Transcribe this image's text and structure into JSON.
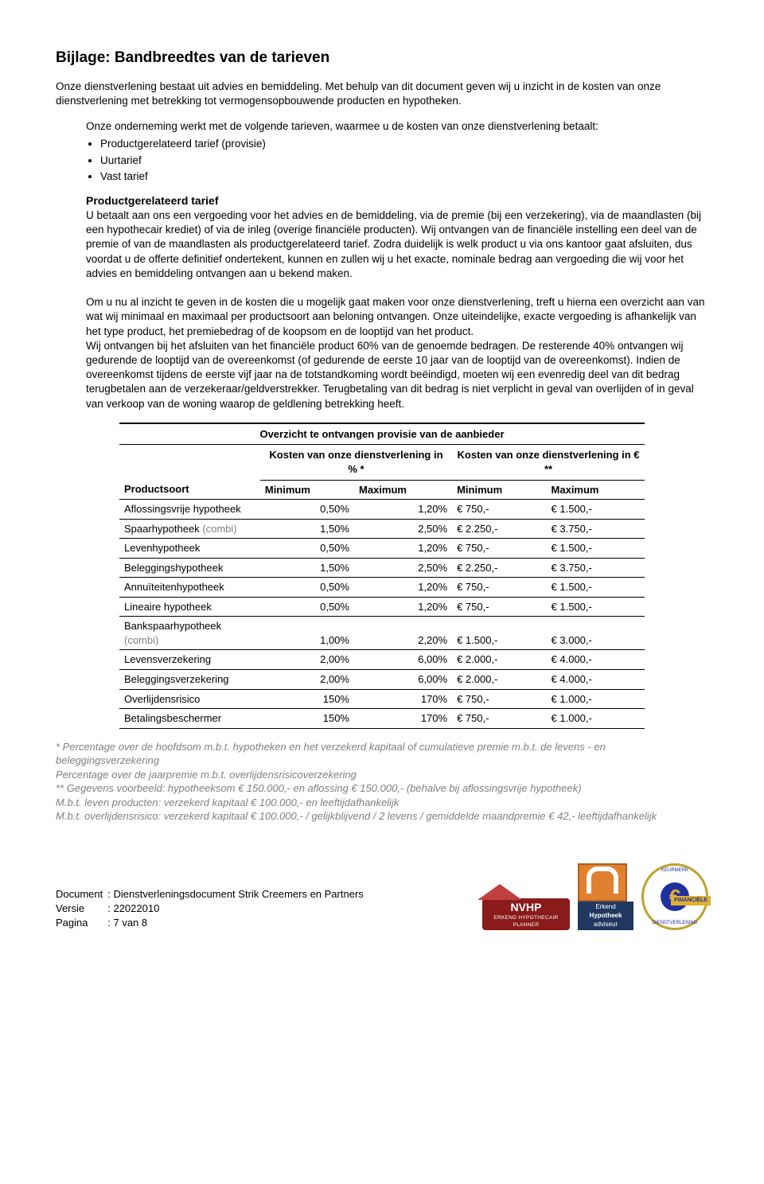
{
  "title": "Bijlage: Bandbreedtes van de tarieven",
  "intro1": "Onze dienstverlening bestaat uit advies en bemiddeling. Met behulp van dit document geven wij u inzicht in de kosten van onze dienstverlening met betrekking tot vermogensopbouwende producten en hypotheken.",
  "block1_intro": "Onze onderneming werkt met de volgende tarieven, waarmee u de kosten van onze dienstverlening betaalt:",
  "bullets": [
    "Productgerelateerd tarief (provisie)",
    "Uurtarief",
    "Vast tarief"
  ],
  "subhead": "Productgerelateerd tarief",
  "para_product": "U betaalt aan ons een vergoeding voor het advies en de bemiddeling, via de premie (bij een verzekering), via de maandlasten (bij een hypothecair krediet) of via de inleg (overige financiële producten). Wij ontvangen van de financiële instelling een deel van de premie of van de maandlasten als productgerelateerd tarief. Zodra duidelijk is welk product u via ons kantoor gaat afsluiten, dus voordat u de offerte definitief ondertekent, kunnen en zullen wij u het exacte, nominale bedrag aan vergoeding die wij voor het advies en bemiddeling ontvangen aan u bekend maken.",
  "para_overview": "Om u nu al inzicht te geven in de kosten die u mogelijk gaat maken voor onze dienstverlening, treft u hierna een overzicht aan van wat wij minimaal en maximaal per productsoort aan beloning ontvangen. Onze uiteindelijke, exacte vergoeding is afhankelijk van het type product, het premiebedrag of de koopsom en de looptijd van het product.\nWij ontvangen bij het afsluiten van het financiële product 60% van de genoemde bedragen. De resterende 40% ontvangen wij gedurende de looptijd van de overeenkomst (of gedurende de eerste 10 jaar van de looptijd van de overeenkomst). Indien de overeenkomst tijdens de eerste vijf jaar na de totstandkoming wordt beëindigd, moeten wij een evenredig deel van dit bedrag terugbetalen aan de verzekeraar/geldverstrekker. Terugbetaling van dit bedrag is niet verplicht in geval van overlijden of in geval van verkoop van de woning waarop de geldlening betrekking heeft.",
  "table": {
    "title": "Overzicht te ontvangen provisie van de aanbieder",
    "col_group1": "Kosten van onze dienstverlening in % *",
    "col_group2": "Kosten van onze dienstverlening in € **",
    "productsoort_label": "Productsoort",
    "min_label": "Minimum",
    "max_label": "Maximum",
    "rows": [
      {
        "name": "Aflossingsvrije hypotheek",
        "suffix": "",
        "pmin": "0,50%",
        "pmax": "1,20%",
        "emin": "€ 750,-",
        "emax": "€ 1.500,-"
      },
      {
        "name": "Spaarhypotheek ",
        "suffix": "(combi)",
        "pmin": "1,50%",
        "pmax": "2,50%",
        "emin": "€ 2.250,-",
        "emax": "€ 3.750,-"
      },
      {
        "name": "Levenhypotheek",
        "suffix": "",
        "pmin": "0,50%",
        "pmax": "1,20%",
        "emin": "€ 750,-",
        "emax": "€ 1.500,-"
      },
      {
        "name": "Beleggingshypotheek",
        "suffix": "",
        "pmin": "1,50%",
        "pmax": "2,50%",
        "emin": "€ 2.250,-",
        "emax": "€ 3.750,-"
      },
      {
        "name": "Annuïteitenhypotheek",
        "suffix": "",
        "pmin": "0,50%",
        "pmax": "1,20%",
        "emin": "€ 750,-",
        "emax": "€ 1.500,-"
      },
      {
        "name": "Lineaire hypotheek",
        "suffix": "",
        "pmin": "0,50%",
        "pmax": "1,20%",
        "emin": "€ 750,-",
        "emax": "€ 1.500,-"
      },
      {
        "name": "Bankspaarhypotheek ",
        "suffix": "(combi)",
        "pmin": "1,00%",
        "pmax": "2,20%",
        "emin": "€ 1.500,-",
        "emax": "€ 3.000,-"
      },
      {
        "name": "Levensverzekering",
        "suffix": "",
        "pmin": "2,00%",
        "pmax": "6,00%",
        "emin": "€ 2.000,-",
        "emax": "€ 4.000,-"
      },
      {
        "name": "Beleggingsverzekering",
        "suffix": "",
        "pmin": "2,00%",
        "pmax": "6,00%",
        "emin": "€ 2.000,-",
        "emax": "€ 4.000,-"
      },
      {
        "name": "Overlijdensrisico",
        "suffix": "",
        "pmin": "150%",
        "pmax": "170%",
        "emin": "€ 750,-",
        "emax": "€ 1.000,-"
      },
      {
        "name": "Betalingsbeschermer",
        "suffix": "",
        "pmin": "150%",
        "pmax": "170%",
        "emin": "€ 750,-",
        "emax": "€ 1.000,-"
      }
    ]
  },
  "footnotes": [
    "* Percentage over de hoofdsom m.b.t. hypotheken en het verzekerd kapitaal of cumulatieve premie m.b.t. de levens - en beleggingsverzekering",
    "Percentage over de jaarpremie m.b.t. overlijdensrisicoverzekering",
    "** Gegevens voorbeeld: hypotheeksom € 150.000,- en aflossing € 150.000,- (behalve bij aflossingsvrije hypotheek)",
    "M.b.t. leven producten: verzekerd kapitaal € 100.000,- en leeftijdafhankelijk",
    "M.b.t. overlijdensrisico: verzekerd kapitaal € 100.000,- / gelijkblijvend / 2 levens / gemiddelde maandpremie € 42,- leeftijdafhankelijk"
  ],
  "footer": {
    "document_label": "Document",
    "document_value": ": Dienstverleningsdocument Strik Creemers en Partners",
    "versie_label": "Versie",
    "versie_value": ": 22022010",
    "pagina_label": "Pagina",
    "pagina_value": ": 7 van 8"
  },
  "logos": {
    "nvhp": "NVHP",
    "nvhp_sub": "ERKEND HYPOTHECAIR PLANNER",
    "erkend1": "Erkend",
    "erkend2": "Hypotheek",
    "erkend3": "adviseur",
    "keurmerk_top": "KEURMERK",
    "keurmerk_bot": "DIENSTVERLENING",
    "keurmerk_fin": "FINANCIËLE",
    "euro": "€"
  }
}
